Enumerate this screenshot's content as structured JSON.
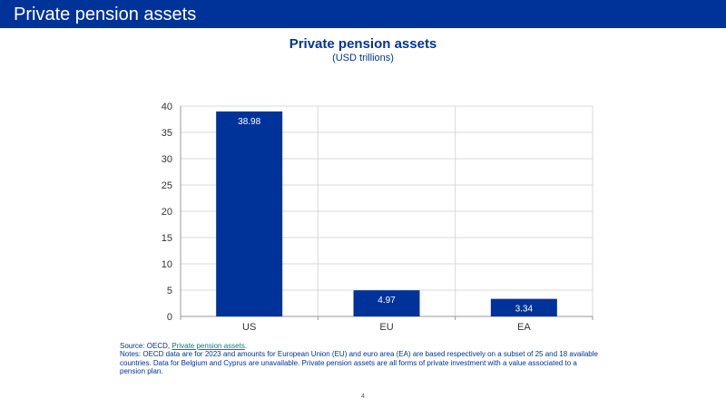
{
  "header": {
    "title": "Private pension assets"
  },
  "colors": {
    "brand": "#003399",
    "bar": "#003399",
    "link": "#008080",
    "grid": "#d9d9d9"
  },
  "chart_data": {
    "type": "bar",
    "title": "Private pension assets",
    "subtitle": "(USD trillions)",
    "categories": [
      "US",
      "EU",
      "EA"
    ],
    "values": [
      38.98,
      4.97,
      3.34
    ],
    "value_labels": [
      "38.98",
      "4.97",
      "3.34"
    ],
    "ylim": [
      0,
      40
    ],
    "yticks": [
      0,
      5,
      10,
      15,
      20,
      25,
      30,
      35,
      40
    ],
    "xlabel": "",
    "ylabel": "",
    "grid": true,
    "legend": "none"
  },
  "footer": {
    "source_prefix": "Source: OECD, ",
    "source_link": "Private pension assets",
    "source_suffix": ".",
    "notes": "Notes: OECD data are for 2023 and amounts for European Union (EU) and euro area (EA) are based respectively on a subset of 25 and 18 available countries. Data for Belgium and Cyprus are unavailable. Private pension assets are all forms of private investment with a value associated to a pension plan.",
    "page_number": "4"
  }
}
